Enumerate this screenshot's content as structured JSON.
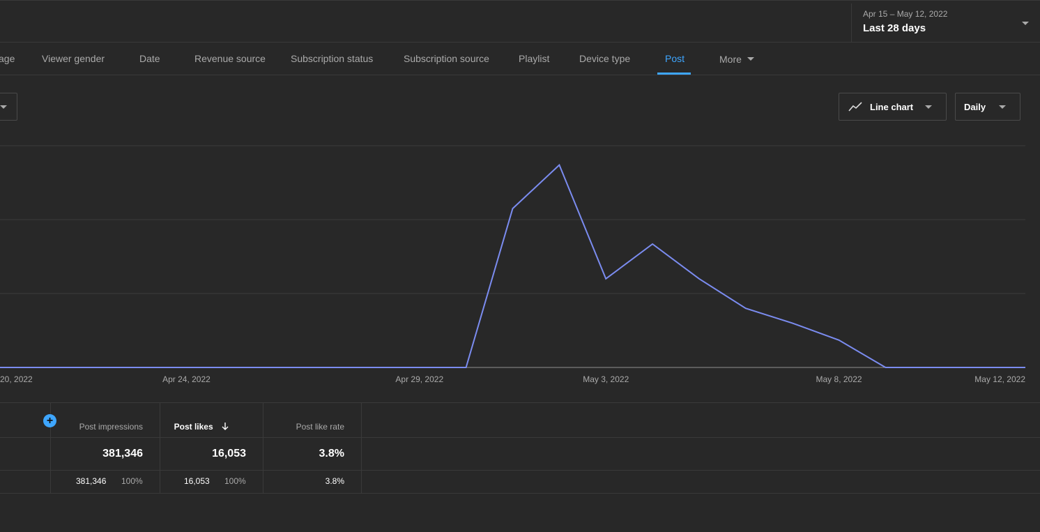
{
  "date_picker": {
    "range": "Apr 15 – May 12, 2022",
    "label": "Last 28 days"
  },
  "tabs": [
    {
      "label": "age"
    },
    {
      "label": "Viewer gender"
    },
    {
      "label": "Date"
    },
    {
      "label": "Revenue source"
    },
    {
      "label": "Subscription status"
    },
    {
      "label": "Subscription source"
    },
    {
      "label": "Playlist"
    },
    {
      "label": "Device type"
    },
    {
      "label": "Post",
      "active": true
    },
    {
      "label": "More"
    }
  ],
  "controls": {
    "chart_type_label": "Line chart",
    "chart_type_icon": "line-chart-icon",
    "interval_label": "Daily"
  },
  "chart_data": {
    "type": "line",
    "x": [
      "2022-04-20",
      "2022-04-21",
      "2022-04-22",
      "2022-04-23",
      "2022-04-24",
      "2022-04-25",
      "2022-04-26",
      "2022-04-27",
      "2022-04-28",
      "2022-04-29",
      "2022-04-30",
      "2022-05-01",
      "2022-05-02",
      "2022-05-03",
      "2022-05-04",
      "2022-05-05",
      "2022-05-06",
      "2022-05-07",
      "2022-05-08",
      "2022-05-09",
      "2022-05-10",
      "2022-05-11",
      "2022-05-12"
    ],
    "series": [
      {
        "values": [
          0,
          0,
          0,
          0,
          0,
          0,
          0,
          0,
          0,
          0,
          0,
          2150,
          2740,
          1200,
          1670,
          1200,
          800,
          600,
          370,
          0,
          0,
          0,
          0
        ],
        "color": "#7b8cf0"
      }
    ],
    "x_tick_labels": [
      "20, 2022",
      "Apr 24, 2022",
      "Apr 29, 2022",
      "May 3, 2022",
      "May 8, 2022",
      "May 12, 2022"
    ],
    "ylim": [
      0,
      3000
    ],
    "grid": true
  },
  "table": {
    "add_icon": "add-metric-icon",
    "columns": [
      {
        "header": "Post impressions",
        "total": "381,346",
        "value": "381,346",
        "percent": "100%"
      },
      {
        "header": "Post likes",
        "total": "16,053",
        "value": "16,053",
        "percent": "100%",
        "sorted": true,
        "sort_icon": "arrow-down-icon"
      },
      {
        "header": "Post like rate",
        "total": "3.8%",
        "value": "3.8%"
      }
    ]
  }
}
